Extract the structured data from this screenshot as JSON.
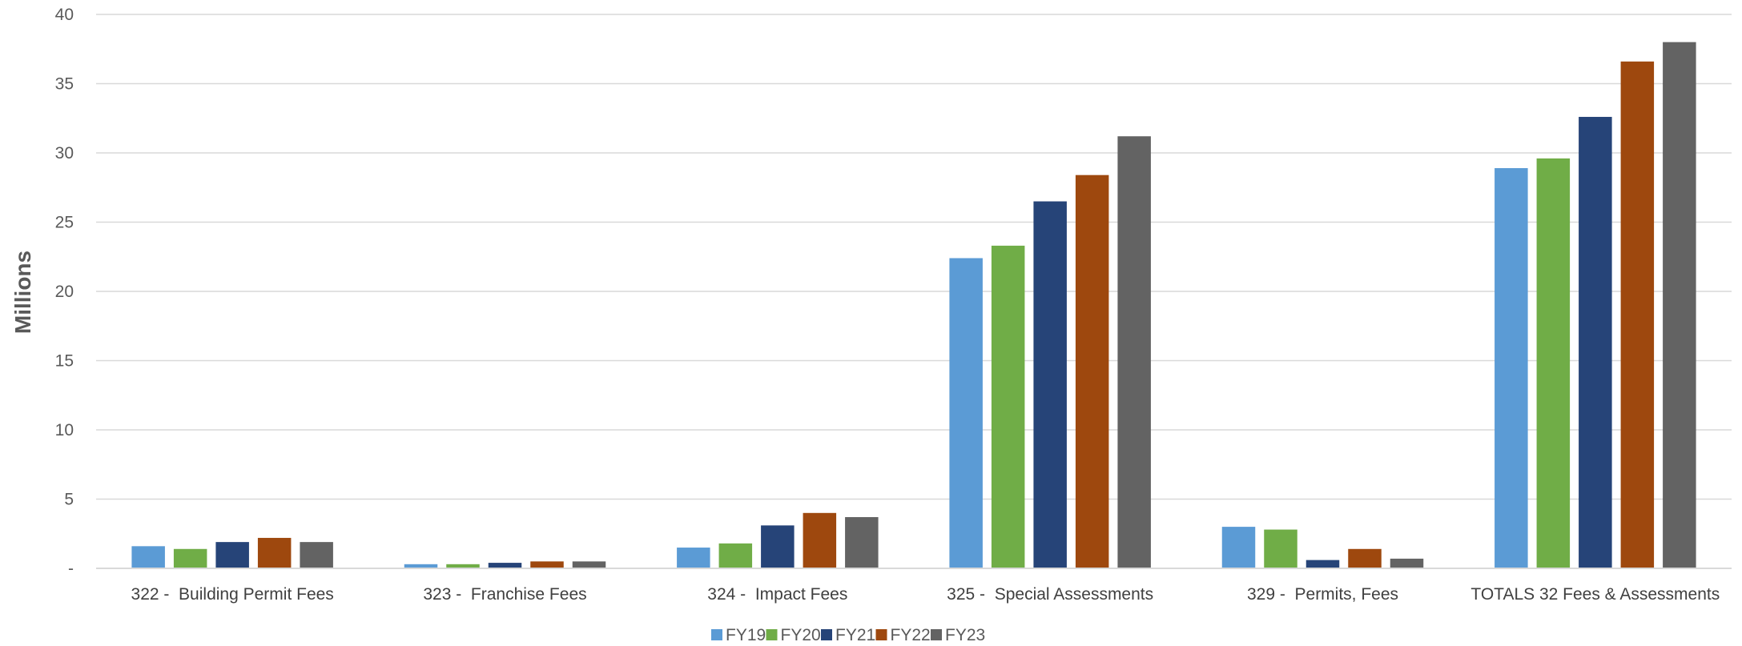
{
  "chart_data": {
    "type": "bar",
    "ylabel": "Millions",
    "ylim": [
      0,
      40
    ],
    "yticks": [
      {
        "value": 0,
        "label": "-"
      },
      {
        "value": 5,
        "label": "5"
      },
      {
        "value": 10,
        "label": "10"
      },
      {
        "value": 15,
        "label": "15"
      },
      {
        "value": 20,
        "label": "20"
      },
      {
        "value": 25,
        "label": "25"
      },
      {
        "value": 30,
        "label": "30"
      },
      {
        "value": 35,
        "label": "35"
      },
      {
        "value": 40,
        "label": "40"
      }
    ],
    "grid": true,
    "legend_position": "bottom",
    "categories": [
      "322 -  Building Permit Fees",
      "323 -  Franchise Fees",
      "324 -  Impact Fees",
      "325 -  Special Assessments",
      "329 -  Permits, Fees",
      "TOTALS 32 Fees & Assessments"
    ],
    "series": [
      {
        "name": "FY19",
        "color": "#5B9BD5",
        "values": [
          1.6,
          0.3,
          1.5,
          22.4,
          3.0,
          28.9
        ]
      },
      {
        "name": "FY20",
        "color": "#70AD47",
        "values": [
          1.4,
          0.3,
          1.8,
          23.3,
          2.8,
          29.6
        ]
      },
      {
        "name": "FY21",
        "color": "#264478",
        "values": [
          1.9,
          0.4,
          3.1,
          26.5,
          0.6,
          32.6
        ]
      },
      {
        "name": "FY22",
        "color": "#9E480E",
        "values": [
          2.2,
          0.5,
          4.0,
          28.4,
          1.4,
          36.6
        ]
      },
      {
        "name": "FY23",
        "color": "#636363",
        "values": [
          1.9,
          0.5,
          3.7,
          31.2,
          0.7,
          38.0
        ]
      }
    ]
  }
}
